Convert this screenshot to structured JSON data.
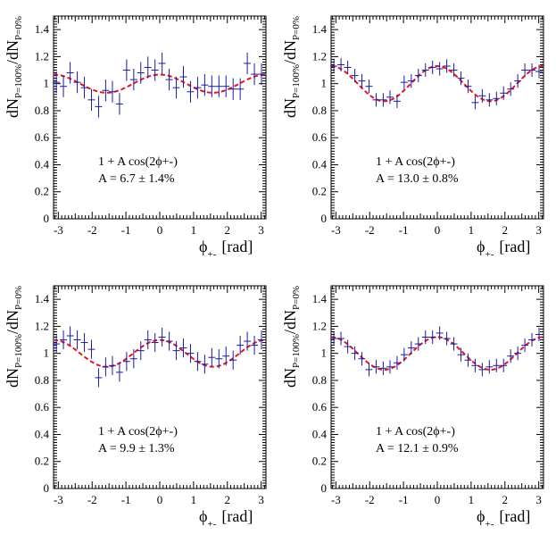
{
  "chart_data": [
    {
      "type": "scatter",
      "title": "",
      "ylabel_main": "dN",
      "ylabel_sub1": "P=100%",
      "ylabel_slash": "/dN",
      "ylabel_sub2": "P=0%",
      "xlabel_main": "ϕ",
      "xlabel_sub": "+-",
      "xlabel_unit": "[rad]",
      "xlim": [
        -3.1416,
        3.1416
      ],
      "ylim": [
        0,
        1.5
      ],
      "xticks": [
        "-3",
        "-2",
        "-1",
        "0",
        "1",
        "2",
        "3"
      ],
      "yticks": [
        "0",
        "0.2",
        "0.4",
        "0.6",
        "0.8",
        "1",
        "1.2",
        "1.4"
      ],
      "fit_formula": "1 + A cos(2ϕ+-)",
      "fit_result": "A = 6.7 ± 1.4%",
      "fit_A": 0.067,
      "x": [
        -3.06,
        -2.85,
        -2.65,
        -2.44,
        -2.23,
        -2.02,
        -1.81,
        -1.6,
        -1.4,
        -1.19,
        -0.98,
        -0.77,
        -0.56,
        -0.35,
        -0.14,
        0.07,
        0.28,
        0.49,
        0.7,
        0.91,
        1.12,
        1.33,
        1.54,
        1.75,
        1.96,
        2.17,
        2.38,
        2.59,
        2.8,
        3.01
      ],
      "y": [
        1.01,
        0.98,
        1.08,
        1.01,
        0.97,
        0.88,
        0.83,
        0.95,
        0.94,
        0.85,
        1.1,
        1.03,
        1.08,
        1.12,
        1.1,
        1.15,
        1.03,
        0.97,
        1.05,
        0.94,
        0.97,
        0.99,
        0.98,
        0.98,
        0.98,
        0.96,
        0.96,
        1.15,
        1.07,
        1.07
      ],
      "yerr": [
        0.08,
        0.08,
        0.08,
        0.08,
        0.08,
        0.08,
        0.08,
        0.08,
        0.08,
        0.08,
        0.08,
        0.08,
        0.08,
        0.08,
        0.08,
        0.08,
        0.08,
        0.08,
        0.08,
        0.08,
        0.08,
        0.08,
        0.08,
        0.08,
        0.08,
        0.08,
        0.08,
        0.08,
        0.08,
        0.08
      ]
    },
    {
      "type": "scatter",
      "title": "",
      "ylabel_main": "dN",
      "ylabel_sub1": "P=100%",
      "ylabel_slash": "/dN",
      "ylabel_sub2": "P=0%",
      "xlabel_main": "ϕ",
      "xlabel_sub": "+-",
      "xlabel_unit": "[rad]",
      "xlim": [
        -3.1416,
        3.1416
      ],
      "ylim": [
        0,
        1.5
      ],
      "xticks": [
        "-3",
        "-2",
        "-1",
        "0",
        "1",
        "2",
        "3"
      ],
      "yticks": [
        "0",
        "0.2",
        "0.4",
        "0.6",
        "0.8",
        "1",
        "1.2",
        "1.4"
      ],
      "fit_formula": "1 + A cos(2ϕ+-)",
      "fit_result": "A = 13.0 ± 0.8%",
      "fit_A": 0.13,
      "x": [
        -3.06,
        -2.85,
        -2.65,
        -2.44,
        -2.23,
        -2.02,
        -1.81,
        -1.6,
        -1.4,
        -1.19,
        -0.98,
        -0.77,
        -0.56,
        -0.35,
        -0.14,
        0.07,
        0.28,
        0.49,
        0.7,
        0.91,
        1.12,
        1.33,
        1.54,
        1.75,
        1.96,
        2.17,
        2.38,
        2.59,
        2.8,
        3.01
      ],
      "y": [
        1.13,
        1.14,
        1.12,
        1.06,
        1.02,
        0.98,
        0.88,
        0.88,
        0.9,
        0.87,
        1.01,
        1.02,
        1.06,
        1.1,
        1.12,
        1.11,
        1.13,
        1.1,
        1.04,
        0.98,
        0.86,
        0.91,
        0.88,
        0.89,
        0.93,
        0.96,
        1.02,
        1.1,
        1.1,
        1.09
      ],
      "yerr": [
        0.05,
        0.05,
        0.05,
        0.05,
        0.05,
        0.05,
        0.05,
        0.05,
        0.05,
        0.05,
        0.05,
        0.05,
        0.05,
        0.05,
        0.05,
        0.05,
        0.05,
        0.05,
        0.05,
        0.05,
        0.05,
        0.05,
        0.05,
        0.05,
        0.05,
        0.05,
        0.05,
        0.05,
        0.05,
        0.05
      ]
    },
    {
      "type": "scatter",
      "title": "",
      "ylabel_main": "dN",
      "ylabel_sub1": "P=100%",
      "ylabel_slash": "/dN",
      "ylabel_sub2": "P=0%",
      "xlabel_main": "ϕ",
      "xlabel_sub": "+-",
      "xlabel_unit": "[rad]",
      "xlim": [
        -3.1416,
        3.1416
      ],
      "ylim": [
        0,
        1.5
      ],
      "xticks": [
        "-3",
        "-2",
        "-1",
        "0",
        "1",
        "2",
        "3"
      ],
      "yticks": [
        "0",
        "0.2",
        "0.4",
        "0.6",
        "0.8",
        "1",
        "1.2",
        "1.4"
      ],
      "fit_formula": "1 + A cos(2ϕ+-)",
      "fit_result": "A = 9.9 ± 1.3%",
      "fit_A": 0.099,
      "x": [
        -3.06,
        -2.85,
        -2.65,
        -2.44,
        -2.23,
        -2.02,
        -1.81,
        -1.6,
        -1.4,
        -1.19,
        -0.98,
        -0.77,
        -0.56,
        -0.35,
        -0.14,
        0.07,
        0.28,
        0.49,
        0.7,
        0.91,
        1.12,
        1.33,
        1.54,
        1.75,
        1.96,
        2.17,
        2.38,
        2.59,
        2.8,
        3.01
      ],
      "y": [
        1.07,
        1.1,
        1.13,
        1.1,
        1.08,
        1.03,
        0.82,
        0.9,
        0.91,
        0.86,
        0.94,
        0.96,
        1.02,
        1.1,
        1.08,
        1.12,
        1.09,
        1.02,
        1.04,
        1.0,
        0.94,
        0.92,
        0.97,
        0.96,
        0.98,
        0.95,
        1.06,
        1.09,
        1.06,
        1.1
      ],
      "yerr": [
        0.07,
        0.07,
        0.07,
        0.07,
        0.07,
        0.07,
        0.07,
        0.07,
        0.07,
        0.07,
        0.07,
        0.07,
        0.07,
        0.07,
        0.07,
        0.07,
        0.07,
        0.07,
        0.07,
        0.07,
        0.07,
        0.07,
        0.07,
        0.07,
        0.07,
        0.07,
        0.07,
        0.07,
        0.07,
        0.07
      ]
    },
    {
      "type": "scatter",
      "title": "",
      "ylabel_main": "dN",
      "ylabel_sub1": "P=100%",
      "ylabel_slash": "/dN",
      "ylabel_sub2": "P=0%",
      "xlabel_main": "ϕ",
      "xlabel_sub": "+-",
      "xlabel_unit": "[rad]",
      "xlim": [
        -3.1416,
        3.1416
      ],
      "ylim": [
        0,
        1.5
      ],
      "xticks": [
        "-3",
        "-2",
        "-1",
        "0",
        "1",
        "2",
        "3"
      ],
      "yticks": [
        "0",
        "0.2",
        "0.4",
        "0.6",
        "0.8",
        "1",
        "1.2",
        "1.4"
      ],
      "fit_formula": "1 + A cos(2ϕ+-)",
      "fit_result": "A = 12.1 ± 0.9%",
      "fit_A": 0.121,
      "x": [
        -3.06,
        -2.85,
        -2.65,
        -2.44,
        -2.23,
        -2.02,
        -1.81,
        -1.6,
        -1.4,
        -1.19,
        -0.98,
        -0.77,
        -0.56,
        -0.35,
        -0.14,
        0.07,
        0.28,
        0.49,
        0.7,
        0.91,
        1.12,
        1.33,
        1.54,
        1.75,
        1.96,
        2.17,
        2.38,
        2.59,
        2.8,
        3.01
      ],
      "y": [
        1.11,
        1.11,
        1.05,
        1.0,
        0.96,
        0.88,
        0.9,
        0.89,
        0.9,
        0.93,
        0.99,
        1.04,
        1.07,
        1.12,
        1.12,
        1.15,
        1.11,
        1.07,
        0.99,
        0.95,
        0.91,
        0.88,
        0.9,
        0.91,
        0.91,
        0.98,
        1.0,
        1.06,
        1.1,
        1.14
      ],
      "yerr": [
        0.05,
        0.05,
        0.05,
        0.05,
        0.05,
        0.05,
        0.05,
        0.05,
        0.05,
        0.05,
        0.05,
        0.05,
        0.05,
        0.05,
        0.05,
        0.05,
        0.05,
        0.05,
        0.05,
        0.05,
        0.05,
        0.05,
        0.05,
        0.05,
        0.05,
        0.05,
        0.05,
        0.05,
        0.05,
        0.05
      ]
    }
  ]
}
